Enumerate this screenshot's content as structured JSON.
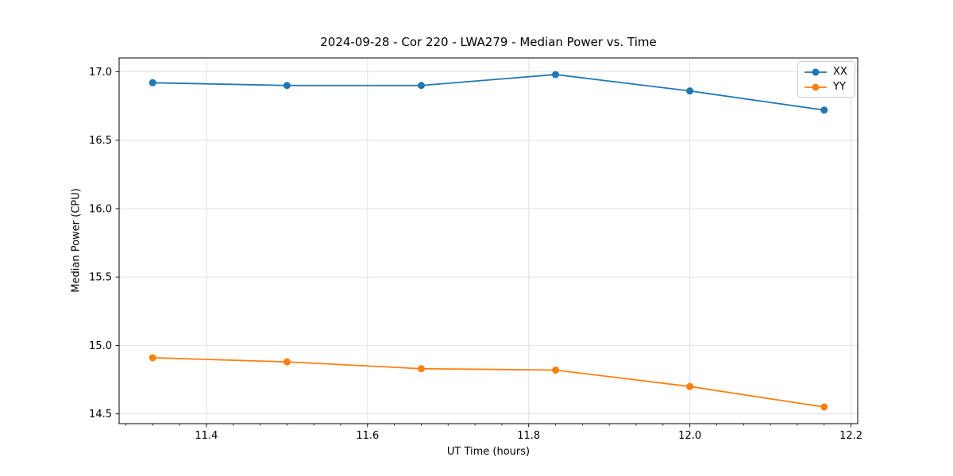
{
  "chart_data": {
    "type": "line",
    "title": "2024-09-28 - Cor 220 - LWA279 - Median Power vs. Time",
    "xlabel": "UT Time (hours)",
    "ylabel": "Median Power (CPU)",
    "x": [
      11.3333,
      11.5,
      11.6667,
      11.8333,
      12.0,
      12.1667
    ],
    "series": [
      {
        "name": "XX",
        "color": "#1f77b4",
        "values": [
          16.92,
          16.9,
          16.9,
          16.98,
          16.86,
          16.72
        ]
      },
      {
        "name": "YY",
        "color": "#ff7f0e",
        "values": [
          14.91,
          14.88,
          14.83,
          14.82,
          14.7,
          14.55
        ]
      }
    ],
    "xlim": [
      11.2917,
      12.2083
    ],
    "ylim": [
      14.4285,
      17.1015
    ],
    "xticks": [
      11.4,
      11.6,
      11.8,
      12.0,
      12.2
    ],
    "yticks": [
      14.5,
      15.0,
      15.5,
      16.0,
      16.5,
      17.0
    ],
    "x_minor_step": 0.0333333,
    "grid": true,
    "grid_color": "#e2e2e2",
    "axis_color": "#000000",
    "marker": "o",
    "marker_radius": 4.5,
    "line_width": 1.8,
    "legend": {
      "position": "upper right",
      "entries": [
        "XX",
        "YY"
      ]
    }
  }
}
